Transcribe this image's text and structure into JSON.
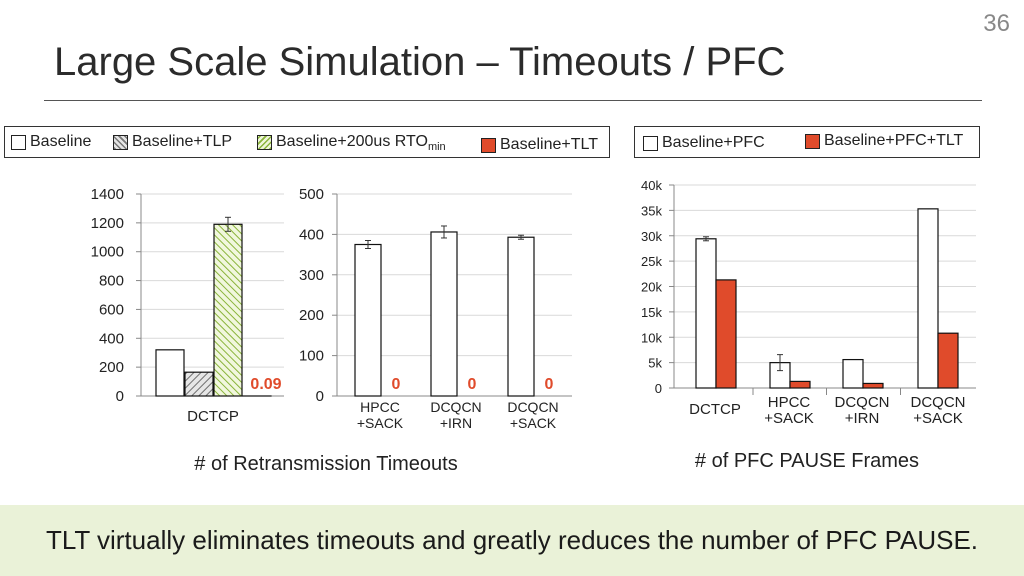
{
  "slide_number": "36",
  "title": "Large Scale Simulation – Timeouts / PFC",
  "legend_left": {
    "baseline": "Baseline",
    "tlp": "Baseline+TLP",
    "rto_main": "Baseline+200us RTO",
    "rto_sub": "min",
    "tlt": "Baseline+TLT"
  },
  "legend_right": {
    "pfc": "Baseline+PFC",
    "pfc_tlt": "Baseline+PFC+TLT"
  },
  "colors": {
    "tlt": "#e04b2b",
    "rto_stroke": "#8ab43a",
    "tlp_stroke": "#777777",
    "footer_bg": "#eaf2d8"
  },
  "footer_text": "TLT virtually eliminates timeouts and greatly reduces the number of PFC PAUSE.",
  "chart_data": [
    {
      "type": "bar",
      "categories": [
        "DCTCP"
      ],
      "series": [
        {
          "name": "Baseline",
          "values": [
            320
          ]
        },
        {
          "name": "Baseline+TLP",
          "values": [
            165
          ]
        },
        {
          "name": "Baseline+200us RTOmin",
          "values": [
            1190
          ]
        },
        {
          "name": "Baseline+TLT",
          "values": [
            0.09
          ]
        }
      ],
      "value_labels": [
        "0.09"
      ],
      "yticks": [
        "0",
        "200",
        "400",
        "600",
        "800",
        "1000",
        "1200",
        "1400"
      ],
      "ylim": [
        0,
        1400
      ],
      "grid": true
    },
    {
      "type": "bar",
      "categories": [
        [
          "HPCC",
          "+SACK"
        ],
        [
          "DCQCN",
          "+IRN"
        ],
        [
          "DCQCN",
          "+SACK"
        ]
      ],
      "series": [
        {
          "name": "Baseline",
          "values": [
            375,
            406,
            393
          ]
        },
        {
          "name": "Baseline+TLT",
          "values": [
            0,
            0,
            0
          ]
        }
      ],
      "value_labels": [
        "0",
        "0",
        "0"
      ],
      "yticks": [
        "0",
        "100",
        "200",
        "300",
        "400",
        "500"
      ],
      "ylim": [
        0,
        500
      ],
      "xlabel": "# of Retransmission Timeouts",
      "grid": true
    },
    {
      "type": "bar",
      "categories": [
        [
          "DCTCP"
        ],
        [
          "HPCC",
          "+SACK"
        ],
        [
          "DCQCN",
          "+IRN"
        ],
        [
          "DCQCN",
          "+SACK"
        ]
      ],
      "series": [
        {
          "name": "Baseline+PFC",
          "values": [
            29400,
            5000,
            5600,
            35300
          ]
        },
        {
          "name": "Baseline+PFC+TLT",
          "values": [
            21300,
            1300,
            900,
            10800
          ]
        }
      ],
      "yticks": [
        "0",
        "5k",
        "10k",
        "15k",
        "20k",
        "25k",
        "30k",
        "35k",
        "40k"
      ],
      "ylim": [
        0,
        40000
      ],
      "xlabel": "# of PFC PAUSE Frames",
      "grid": true
    }
  ]
}
